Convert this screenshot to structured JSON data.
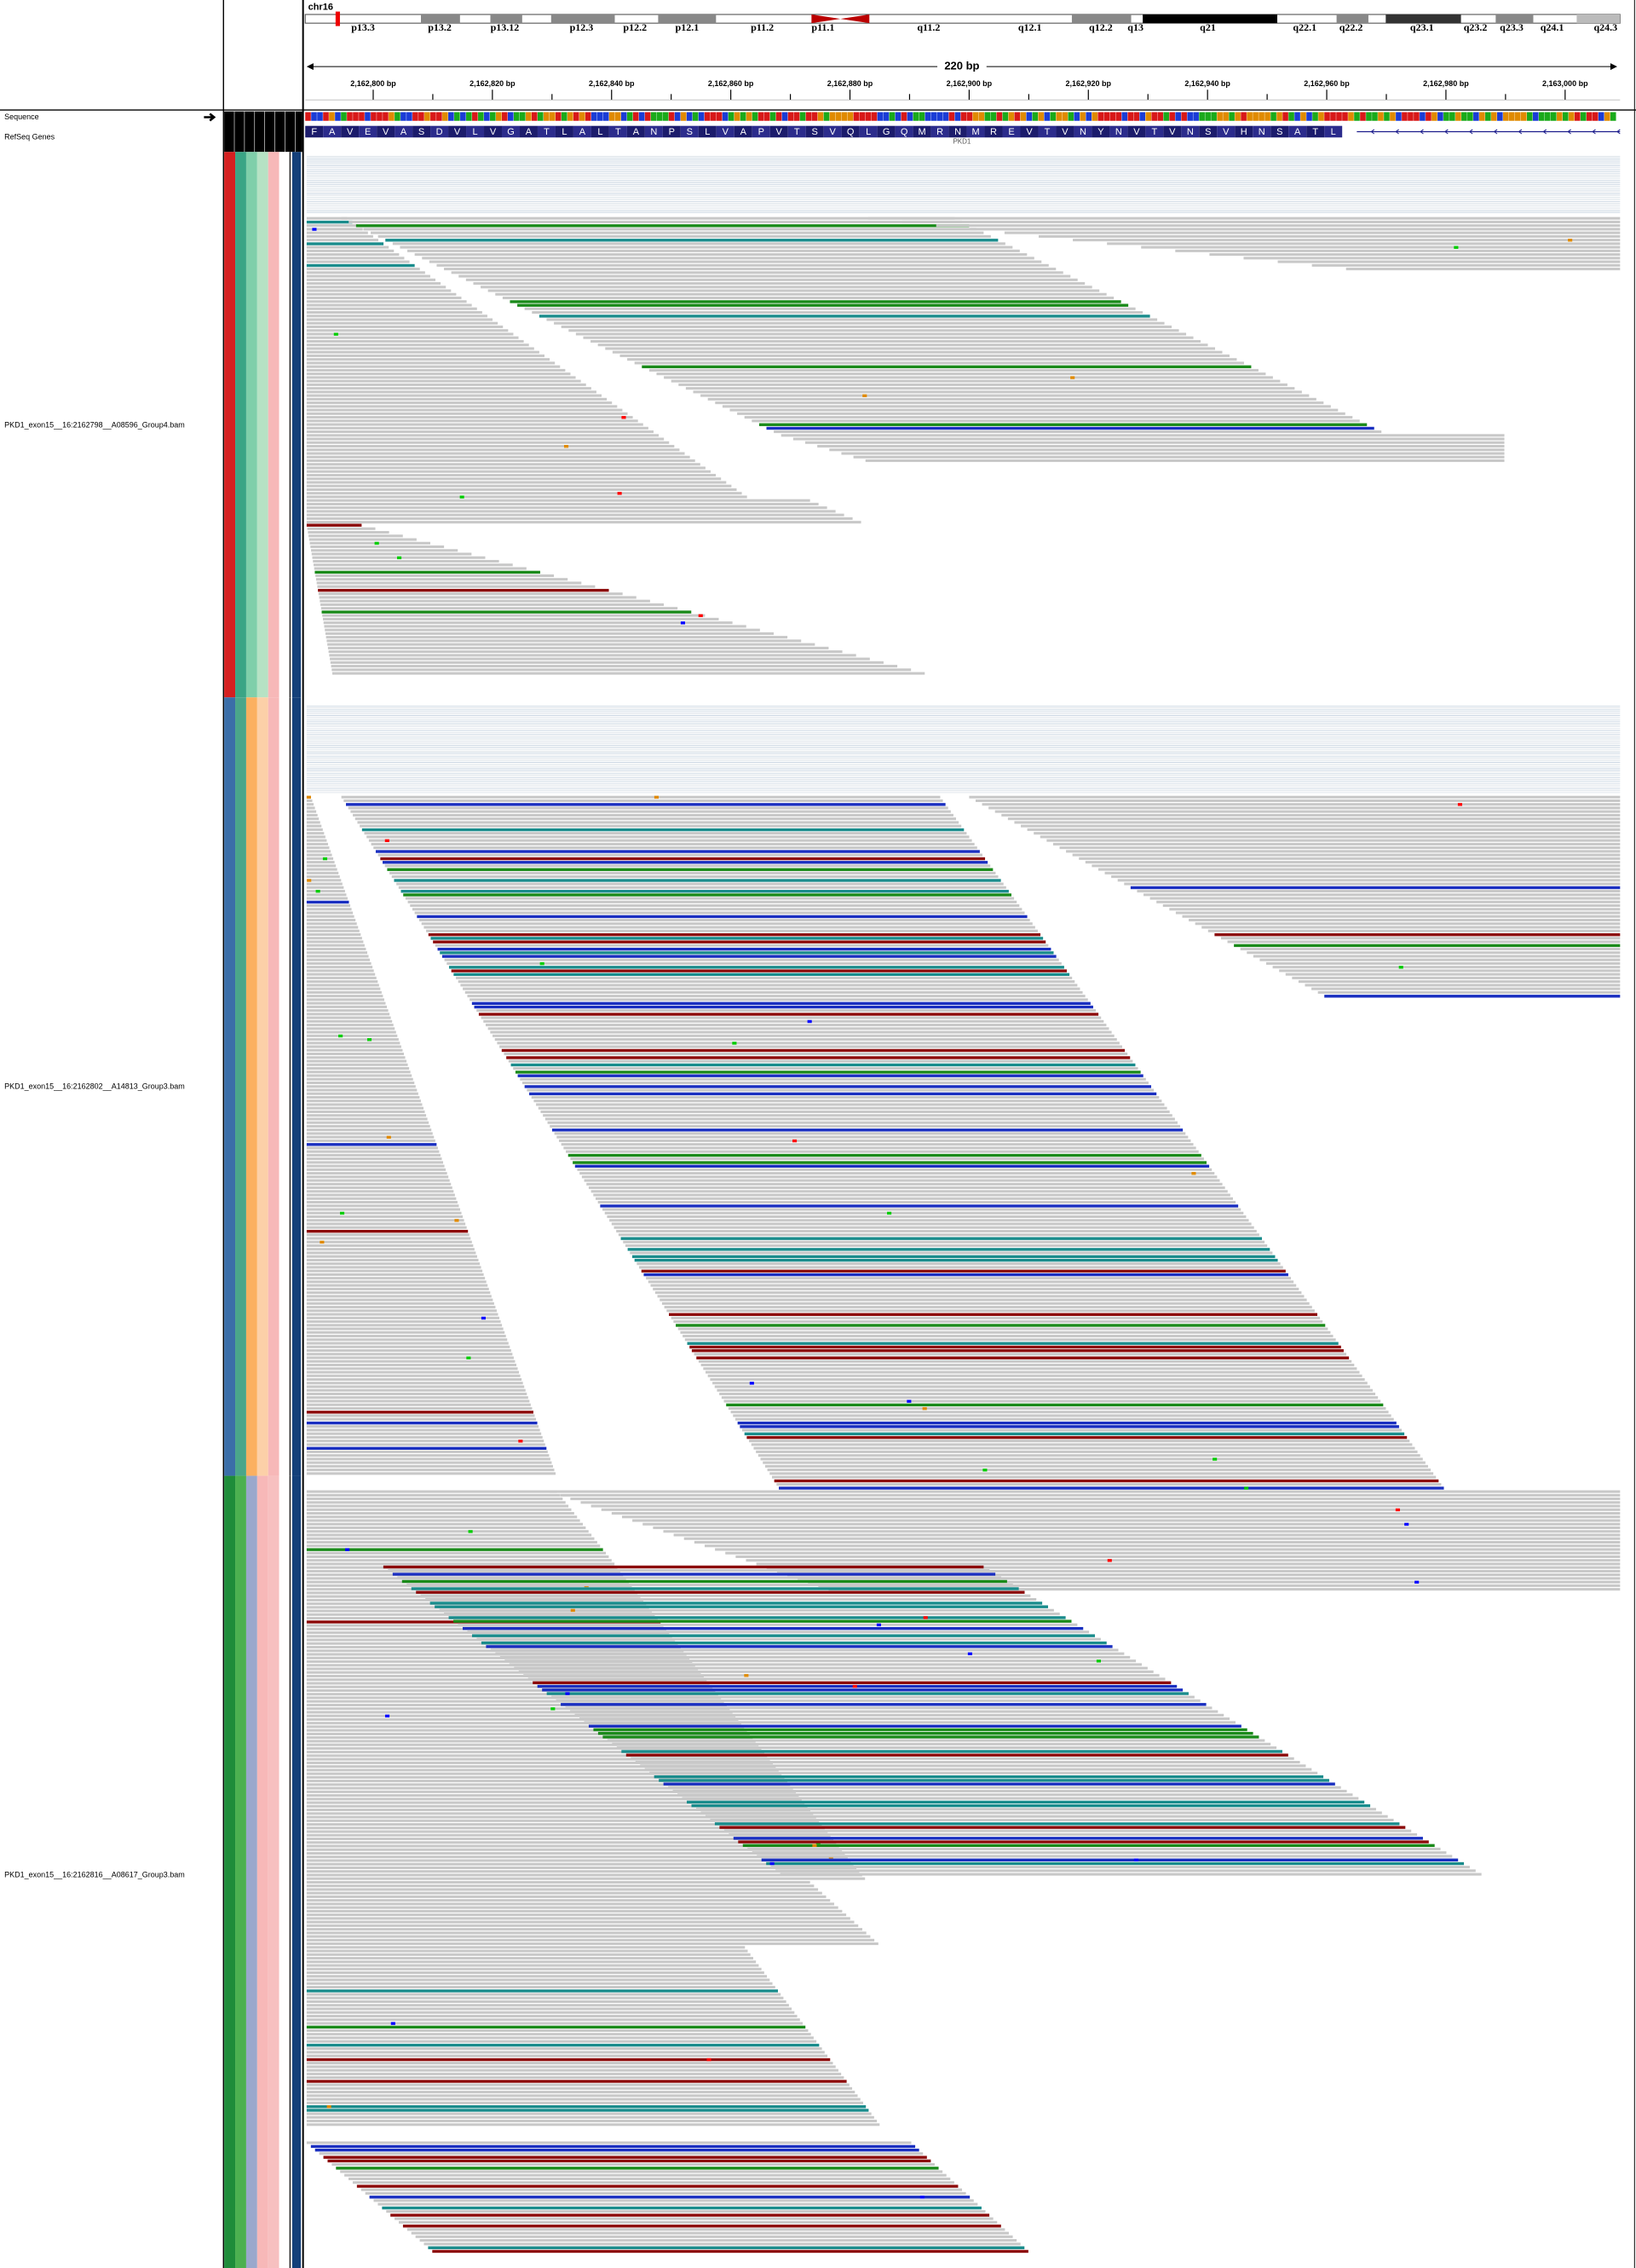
{
  "header": {
    "chromosome": "chr16",
    "bands": [
      "p13.3",
      "p13.2",
      "p13.12",
      "p12.3",
      "p12.2",
      "p12.1",
      "p11.2",
      "p11.1",
      "q11.2",
      "q12.1",
      "q12.2",
      "q13",
      "q21",
      "q22.1",
      "q22.2",
      "q23.1",
      "q23.2",
      "q23.3",
      "q24.1",
      "q24.3"
    ],
    "span": "220 bp",
    "ruler_ticks": [
      "2,162,800 bp",
      "2,162,820 bp",
      "2,162,840 bp",
      "2,162,860 bp",
      "2,162,880 bp",
      "2,162,900 bp",
      "2,162,920 bp",
      "2,162,940 bp",
      "2,162,960 bp",
      "2,162,980 bp",
      "2,163,000 bp"
    ]
  },
  "feature_tracks": {
    "sequence_label": "Sequence",
    "refseq_label": "RefSeq Genes",
    "amino_acids": [
      "F",
      "A",
      "V",
      "E",
      "V",
      "A",
      "S",
      "D",
      "V",
      "L",
      "V",
      "G",
      "A",
      "T",
      "L",
      "A",
      "L",
      "T",
      "A",
      "N",
      "P",
      "S",
      "L",
      "V",
      "A",
      "P",
      "V",
      "T",
      "S",
      "V",
      "Q",
      "L",
      "G",
      "Q",
      "M",
      "R",
      "N",
      "M",
      "R",
      "E",
      "V",
      "T",
      "V",
      "N",
      "Y",
      "N",
      "V",
      "T",
      "V",
      "N",
      "S",
      "V",
      "H",
      "N",
      "S",
      "A",
      "T",
      "L"
    ],
    "gene": "PKD1"
  },
  "alignments": [
    {
      "name": "PKD1_exon15__16:2162798__A08596_Group4.bam"
    },
    {
      "name": "PKD1_exon15__16:2162802__A14813_Group3.bam"
    },
    {
      "name": "PKD1_exon15__16:2162816__A08617_Group3.bam"
    }
  ]
}
